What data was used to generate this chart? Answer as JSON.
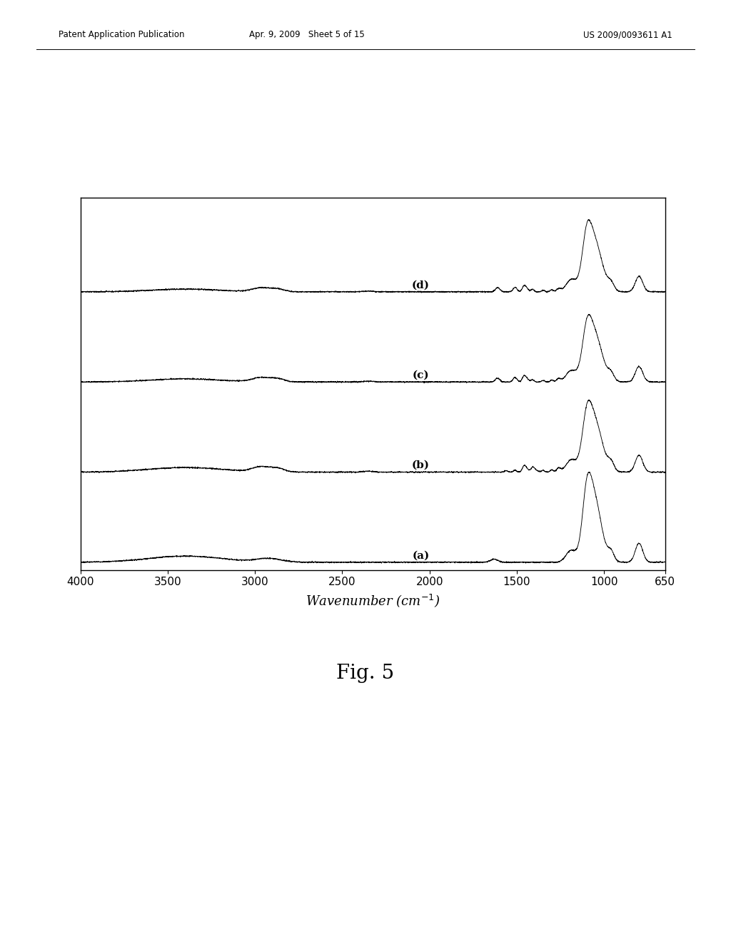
{
  "xlabel": "Wavenumber (cm$^{-1}$)",
  "xmin": 650,
  "xmax": 4000,
  "xticks": [
    4000,
    3500,
    3000,
    2500,
    2000,
    1500,
    1000,
    650
  ],
  "labels": [
    "(a)",
    "(b)",
    "(c)",
    "(d)"
  ],
  "background_color": "#ffffff",
  "line_color": "#000000",
  "header_left": "Patent Application Publication",
  "header_center": "Apr. 9, 2009   Sheet 5 of 15",
  "header_right": "US 2009/0093611 A1",
  "figure_label": "Fig. 5"
}
